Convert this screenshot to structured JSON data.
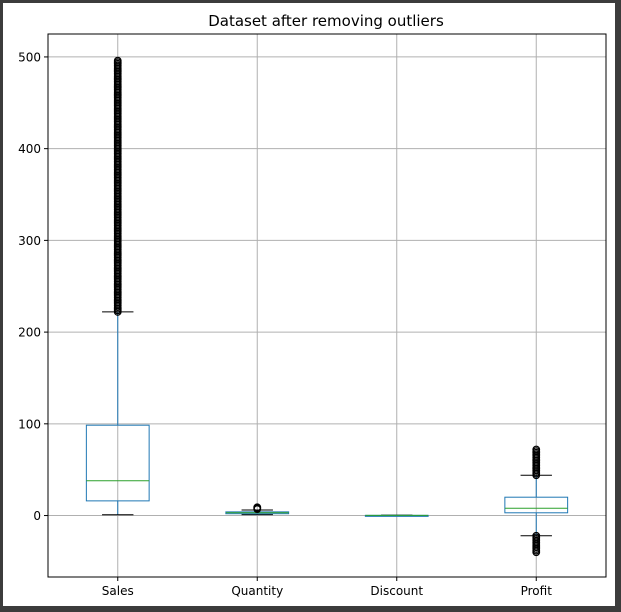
{
  "chart_data": {
    "type": "boxplot",
    "title": "Dataset after removing outliers",
    "xlabel": "",
    "ylabel": "",
    "categories": [
      "Sales",
      "Quantity",
      "Discount",
      "Profit"
    ],
    "ylim": [
      -67,
      525
    ],
    "yticks": [
      0,
      100,
      200,
      300,
      400,
      500
    ],
    "grid": true,
    "boxes": [
      {
        "name": "Sales",
        "whisker_low": 0.9,
        "q1": 16,
        "median": 38,
        "q3": 98.5,
        "whisker_high": 222,
        "outliers_high_range": [
          222,
          496
        ],
        "outliers_low_range": null
      },
      {
        "name": "Quantity",
        "whisker_low": 1,
        "q1": 2,
        "median": 3,
        "q3": 4,
        "whisker_high": 6,
        "outliers_high_range": [
          7,
          9
        ],
        "outliers_low_range": null
      },
      {
        "name": "Discount",
        "whisker_low": 0,
        "q1": 0,
        "median": 0.2,
        "q3": 0.2,
        "whisker_high": 0.5,
        "outliers_high_range": null,
        "outliers_low_range": null
      },
      {
        "name": "Profit",
        "whisker_low": -22,
        "q1": 3,
        "median": 8,
        "q3": 20,
        "whisker_high": 44,
        "outliers_high_range": [
          44,
          72
        ],
        "outliers_low_range": [
          -40,
          -22
        ]
      }
    ],
    "colors": {
      "box": "#1f77b4",
      "median": "#2ca02c",
      "whisker": "#1f77b4",
      "cap": "#000000",
      "grid": "#b0b0b0",
      "flier": "#000000"
    }
  }
}
